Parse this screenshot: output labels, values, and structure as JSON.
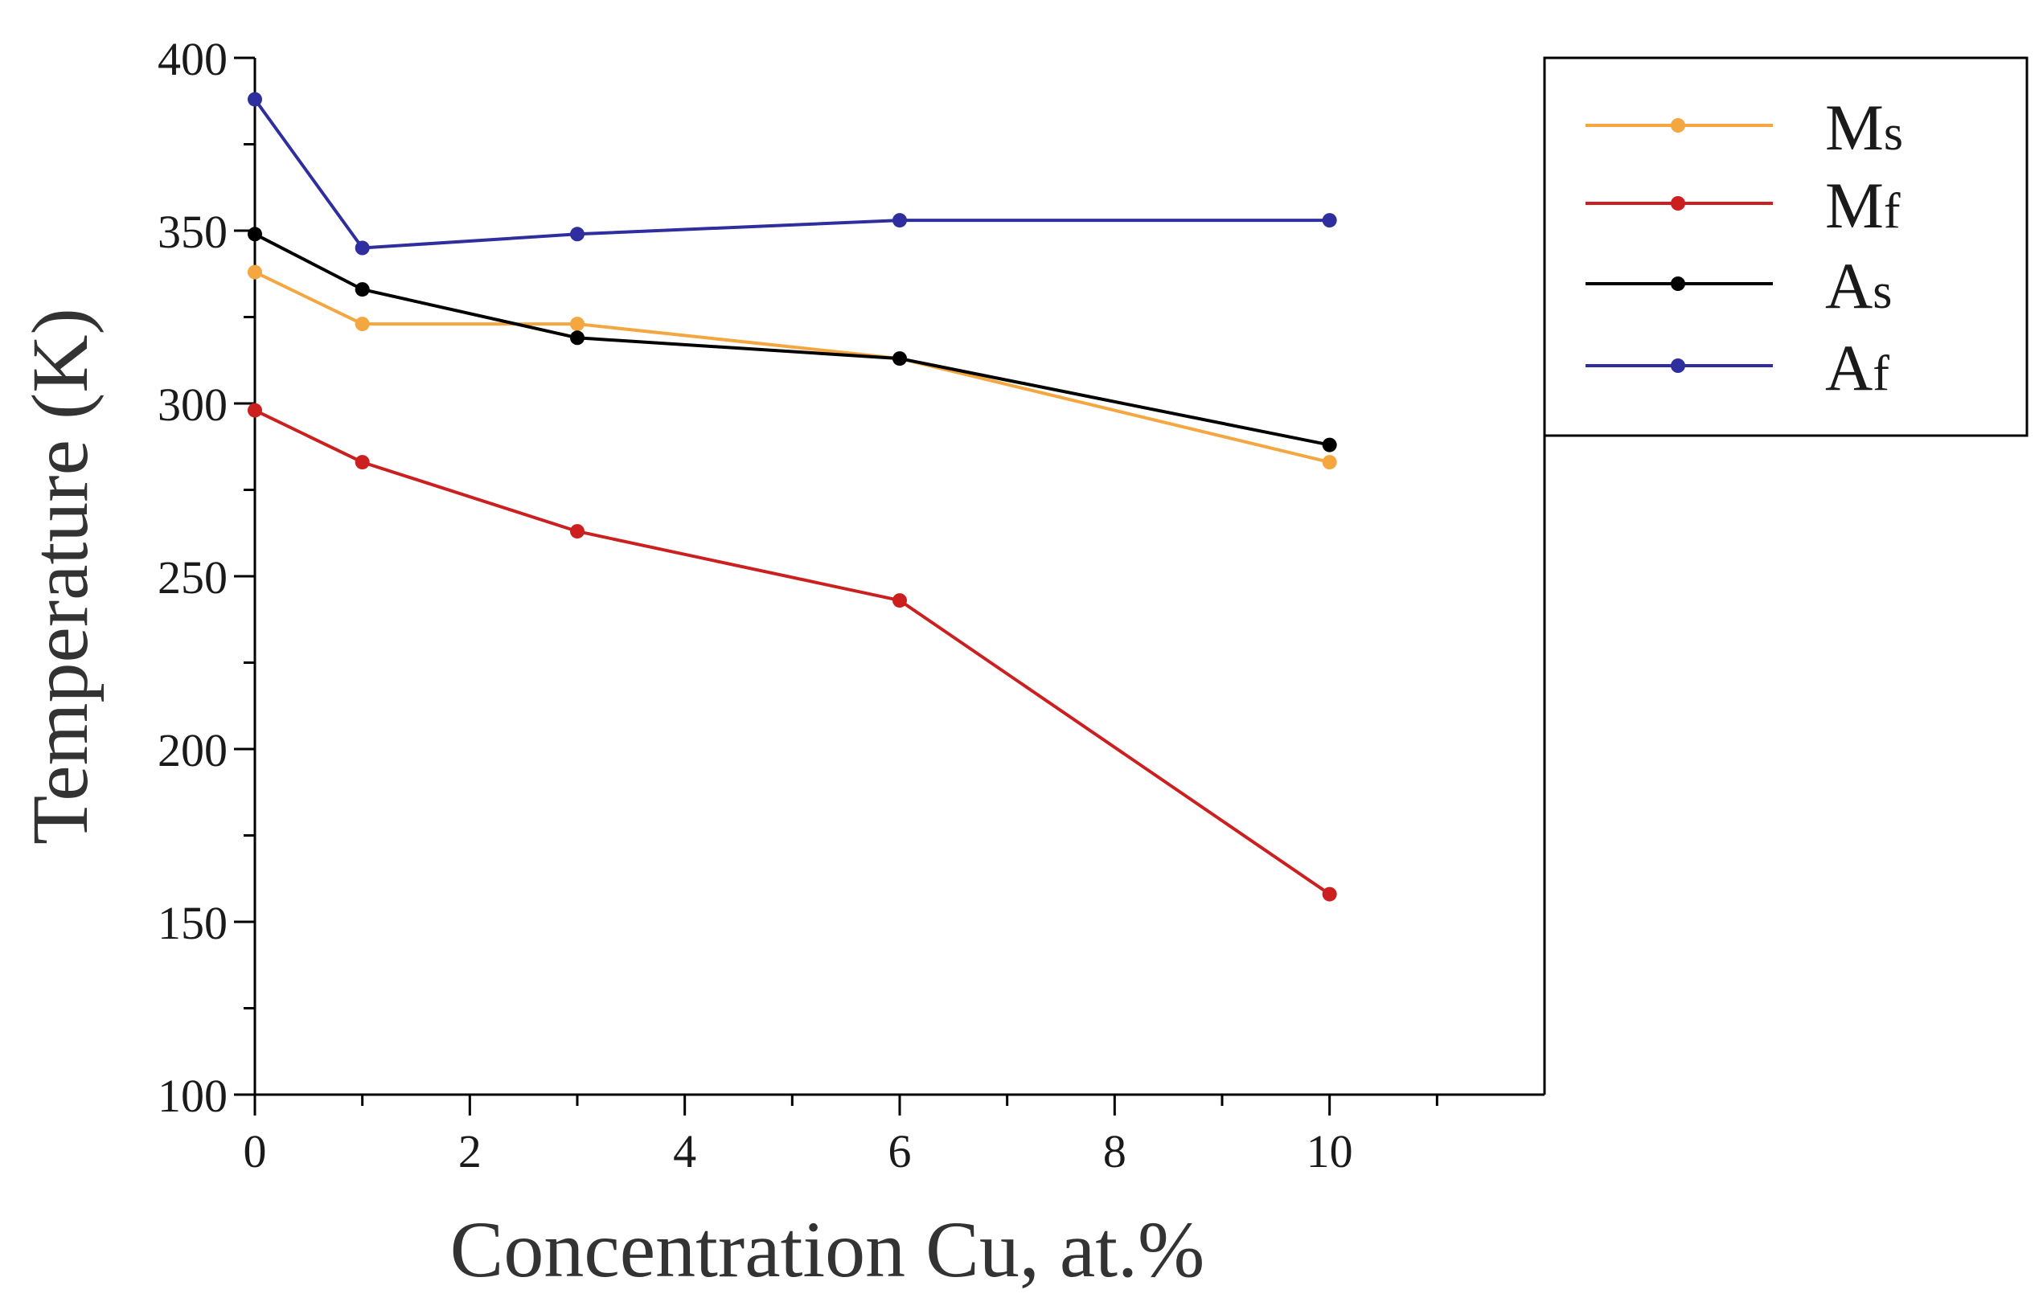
{
  "chart_data": {
    "type": "line",
    "xlabel": "Concentration Cu, at.%",
    "ylabel": "Temperature (K)",
    "xlim": [
      0,
      12
    ],
    "ylim": [
      100,
      400
    ],
    "x_ticks": [
      0,
      2,
      4,
      6,
      8,
      10
    ],
    "x_tick_labels": [
      "0",
      "2",
      "4",
      "6",
      "8",
      "10"
    ],
    "x_minor_ticks": [
      1,
      3,
      5,
      7,
      9,
      11
    ],
    "y_ticks": [
      100,
      150,
      200,
      250,
      300,
      350,
      400
    ],
    "y_tick_labels": [
      "100",
      "150",
      "200",
      "250",
      "300",
      "350",
      "400"
    ],
    "y_minor_ticks": [
      125,
      175,
      225,
      275,
      325,
      375
    ],
    "grid": false,
    "legend_position": "top-right, outside plot area",
    "x": [
      0,
      1,
      3,
      6,
      10
    ],
    "series": [
      {
        "name": "Ms",
        "label_main": "M",
        "label_sub": "s",
        "color": "#f4a640",
        "values": [
          338,
          323,
          323,
          313,
          283
        ]
      },
      {
        "name": "Mf",
        "label_main": "M",
        "label_sub": "f",
        "color": "#cc1f1f",
        "values": [
          298,
          283,
          263,
          243,
          158
        ]
      },
      {
        "name": "As",
        "label_main": "A",
        "label_sub": "s",
        "color": "#000000",
        "values": [
          349,
          333,
          319,
          313,
          288
        ]
      },
      {
        "name": "Af",
        "label_main": "A",
        "label_sub": "f",
        "color": "#2e2e9e",
        "values": [
          388,
          345,
          349,
          353,
          353
        ]
      }
    ]
  }
}
